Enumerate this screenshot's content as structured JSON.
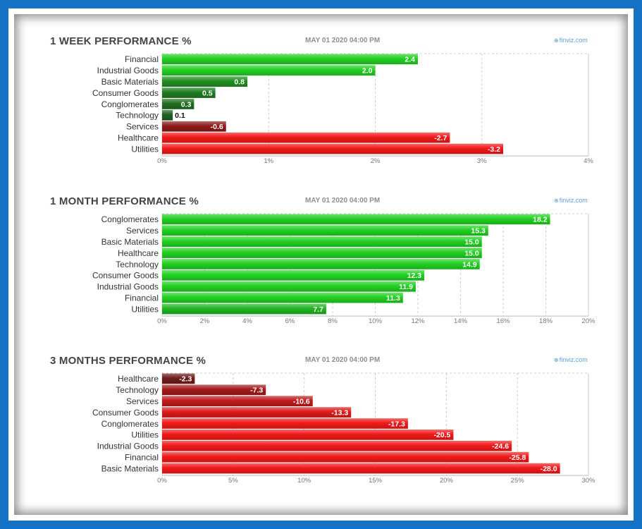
{
  "colors": {
    "pos_light": "#22d122",
    "pos_dark": "#1f5a1f",
    "neg_light": "#f01a1a",
    "neg_dark": "#5a1c1c",
    "grid": "#cccccc",
    "tick": "#777777",
    "label": "#333333"
  },
  "chart_data": [
    {
      "type": "bar",
      "title": "1 WEEK PERFORMANCE %",
      "date": "MAY 01 2020 04:00 PM",
      "brand": "finviz.com",
      "brand_icon": "globe-icon",
      "categories": [
        "Financial",
        "Industrial Goods",
        "Basic Materials",
        "Consumer Goods",
        "Conglomerates",
        "Technology",
        "Services",
        "Healthcare",
        "Utilities"
      ],
      "values": [
        2.4,
        2.0,
        0.8,
        0.5,
        0.3,
        0.1,
        -0.6,
        -2.7,
        -3.2
      ],
      "value_labels": [
        "2.4",
        "2.0",
        "0.8",
        "0.5",
        "0.3",
        "0.1",
        "-0.6",
        "-2.7",
        "-3.2"
      ],
      "xlim": [
        0,
        4
      ],
      "xticks": [
        "0%",
        "1%",
        "2%",
        "3%",
        "4%"
      ],
      "xlabel": "",
      "ylabel": ""
    },
    {
      "type": "bar",
      "title": "1 MONTH PERFORMANCE %",
      "date": "MAY 01 2020 04:00 PM",
      "brand": "finviz.com",
      "brand_icon": "globe-icon",
      "categories": [
        "Conglomerates",
        "Services",
        "Basic Materials",
        "Healthcare",
        "Technology",
        "Consumer Goods",
        "Industrial Goods",
        "Financial",
        "Utilities"
      ],
      "values": [
        18.2,
        15.3,
        15.0,
        15.0,
        14.9,
        12.3,
        11.9,
        11.3,
        7.7
      ],
      "value_labels": [
        "18.2",
        "15.3",
        "15.0",
        "15.0",
        "14.9",
        "12.3",
        "11.9",
        "11.3",
        "7.7"
      ],
      "xlim": [
        0,
        20
      ],
      "xticks": [
        "0%",
        "2%",
        "4%",
        "6%",
        "8%",
        "10%",
        "12%",
        "14%",
        "16%",
        "18%",
        "20%"
      ],
      "xlabel": "",
      "ylabel": ""
    },
    {
      "type": "bar",
      "title": "3 MONTHS PERFORMANCE %",
      "date": "MAY 01 2020 04:00 PM",
      "brand": "finviz.com",
      "brand_icon": "globe-icon",
      "categories": [
        "Healthcare",
        "Technology",
        "Services",
        "Consumer Goods",
        "Conglomerates",
        "Utilities",
        "Industrial Goods",
        "Financial",
        "Basic Materials"
      ],
      "values": [
        -2.3,
        -7.3,
        -10.6,
        -13.3,
        -17.3,
        -20.5,
        -24.6,
        -25.8,
        -28.0
      ],
      "value_labels": [
        "-2.3",
        "-7.3",
        "-10.6",
        "-13.3",
        "-17.3",
        "-20.5",
        "-24.6",
        "-25.8",
        "-28.0"
      ],
      "xlim": [
        0,
        30
      ],
      "xticks": [
        "0%",
        "5%",
        "10%",
        "15%",
        "20%",
        "25%",
        "30%"
      ],
      "xlabel": "",
      "ylabel": ""
    }
  ]
}
